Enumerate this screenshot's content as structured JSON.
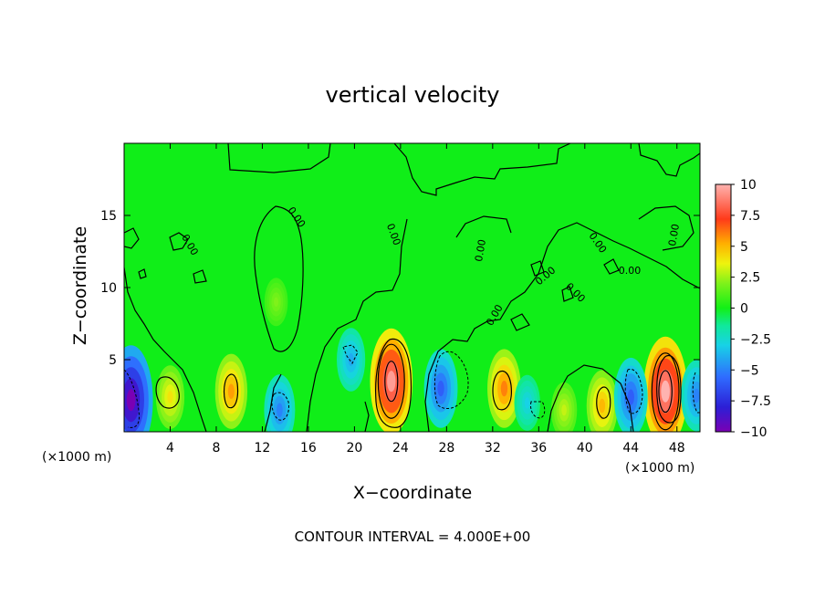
{
  "chart_data": {
    "type": "heatmap",
    "title": "vertical velocity",
    "xlabel": "X−coordinate",
    "ylabel": "Z−coordinate",
    "x_unit": "(×1000 m)",
    "z_unit": "(×1000 m)",
    "footer": "CONTOUR INTERVAL = 4.000E+00",
    "xlim": [
      0,
      50
    ],
    "ylim": [
      0,
      20
    ],
    "x_ticks": [
      "4",
      "8",
      "12",
      "16",
      "20",
      "24",
      "28",
      "32",
      "36",
      "40",
      "44",
      "48"
    ],
    "x_tick_values": [
      4,
      8,
      12,
      16,
      20,
      24,
      28,
      32,
      36,
      40,
      44,
      48
    ],
    "y_ticks": [
      "5",
      "10",
      "15"
    ],
    "y_tick_values": [
      5,
      10,
      15
    ],
    "colorbar": {
      "range": [
        -10,
        10
      ],
      "labels": [
        "10",
        "7.5",
        "5",
        "2.5",
        "0",
        "−2.5",
        "−5",
        "−7.5",
        "−10"
      ],
      "values": [
        10,
        7.5,
        5,
        2.5,
        0,
        -2.5,
        -5,
        -7.5,
        -10
      ]
    },
    "contour_labels": [
      "0.00",
      "0.00",
      "0.00",
      "0.00",
      "0.00",
      "0.00",
      "0.00",
      "0.00",
      "0.00",
      "0.00"
    ],
    "features": [
      {
        "kind": "max",
        "x": 23.2,
        "z": 3.5,
        "value": 9.5
      },
      {
        "kind": "max",
        "x": 47.0,
        "z": 2.8,
        "value": 10.0
      },
      {
        "kind": "max",
        "x": 33.0,
        "z": 3.0,
        "value": 6.0
      },
      {
        "kind": "max",
        "x": 9.3,
        "z": 2.8,
        "value": 5.5
      },
      {
        "kind": "max",
        "x": 4.0,
        "z": 2.4,
        "value": 4.0
      },
      {
        "kind": "max",
        "x": 41.5,
        "z": 1.8,
        "value": 5.0
      },
      {
        "kind": "max",
        "x": 38.2,
        "z": 1.5,
        "value": 3.0
      },
      {
        "kind": "max",
        "x": 13.2,
        "z": 9.0,
        "value": 2.0
      },
      {
        "kind": "min",
        "x": 0.6,
        "z": 2.2,
        "value": -10.0
      },
      {
        "kind": "min",
        "x": 27.5,
        "z": 3.0,
        "value": -6.0
      },
      {
        "kind": "min",
        "x": 44.0,
        "z": 2.4,
        "value": -6.0
      },
      {
        "kind": "min",
        "x": 13.5,
        "z": 1.5,
        "value": -5.0
      },
      {
        "kind": "min",
        "x": 19.7,
        "z": 5.0,
        "value": -4.0
      },
      {
        "kind": "min",
        "x": 35.0,
        "z": 2.0,
        "value": -3.0
      },
      {
        "kind": "min",
        "x": 49.7,
        "z": 2.5,
        "value": -5.0
      }
    ]
  }
}
